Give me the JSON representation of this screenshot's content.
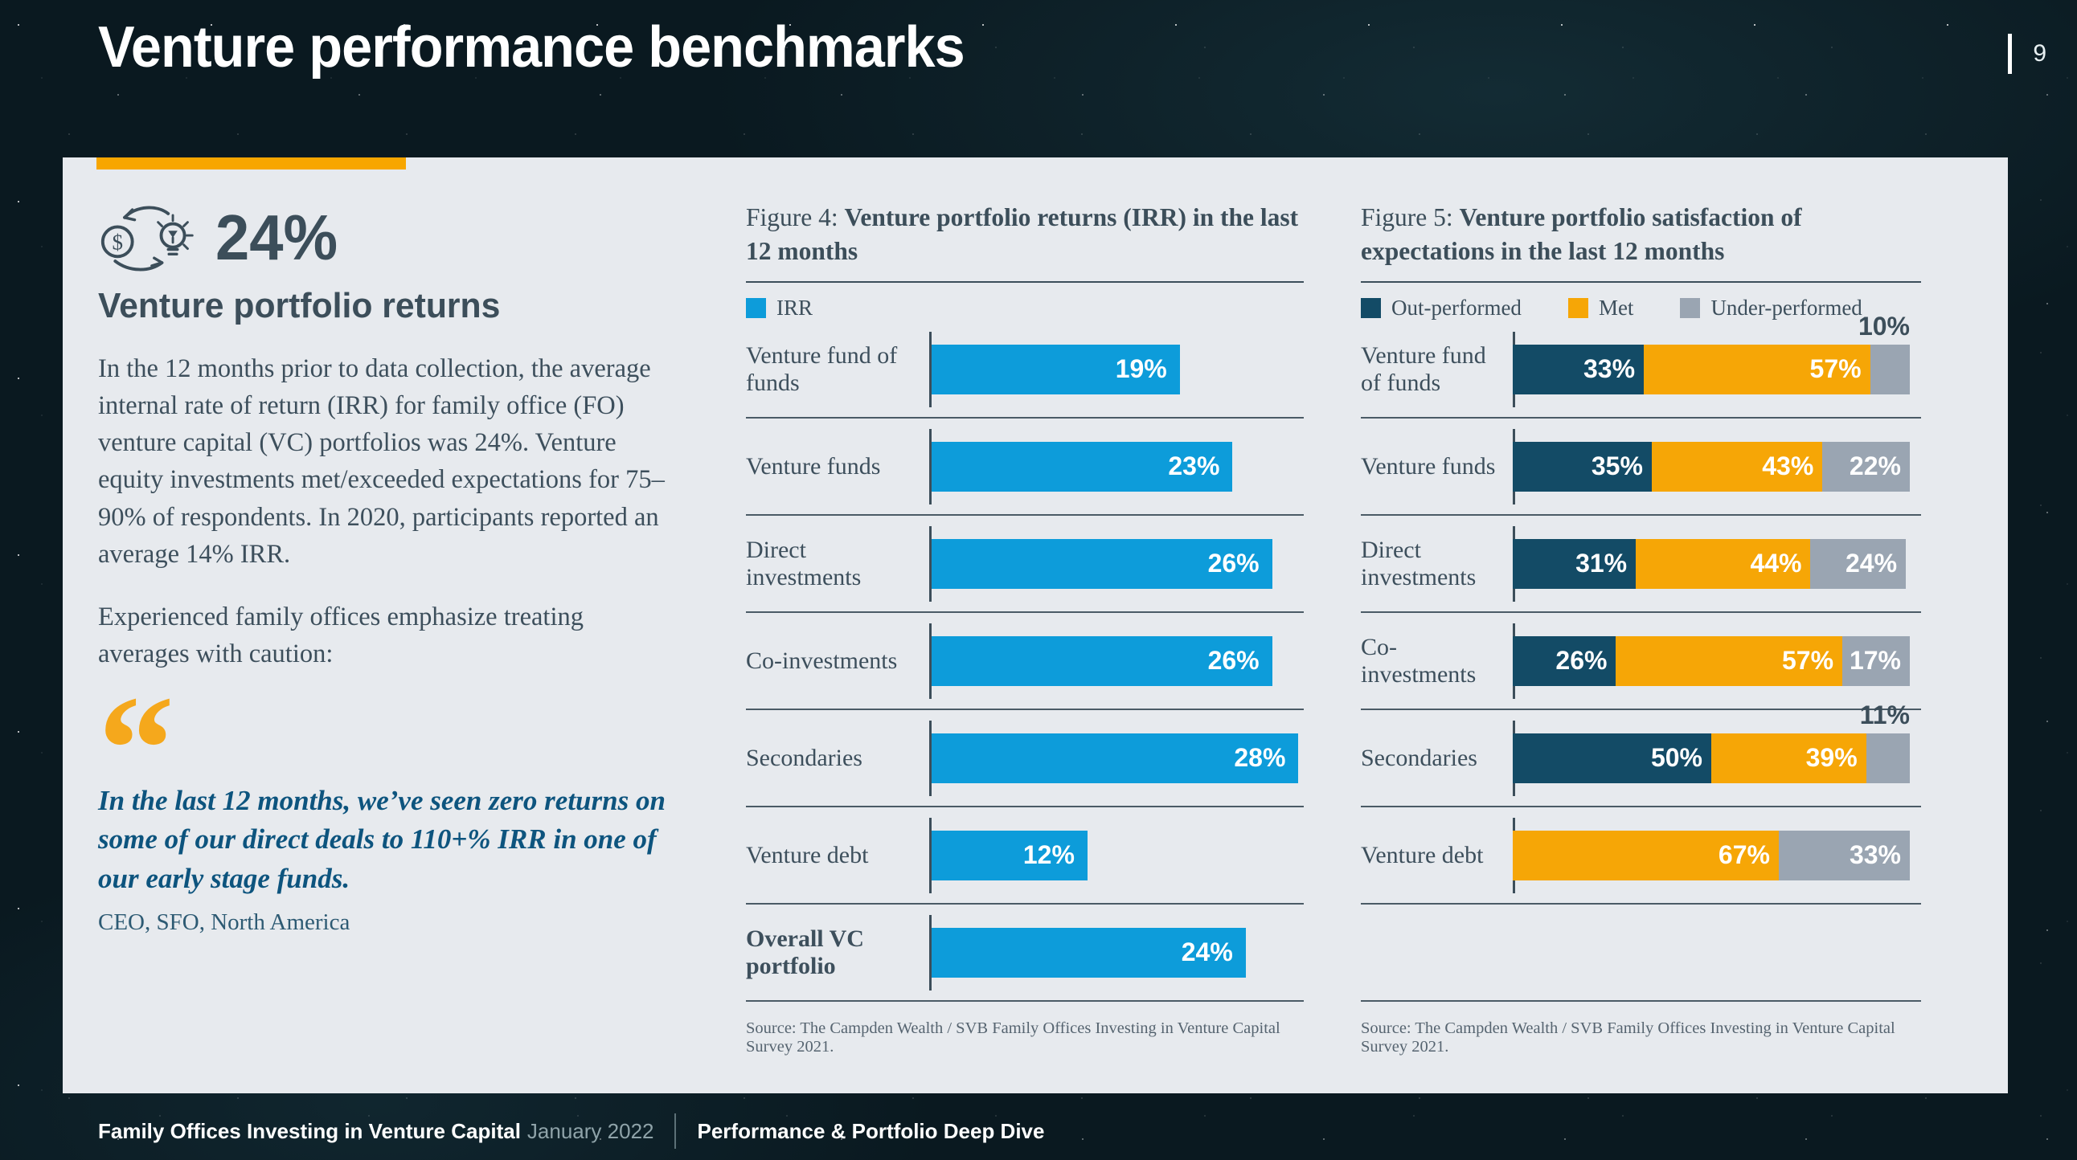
{
  "page": {
    "title": "Venture performance benchmarks",
    "page_number": "9"
  },
  "colors": {
    "accent_orange": "#f7a600",
    "irr_blue": "#0d9cda",
    "outperformed_navy": "#134b66",
    "met_orange": "#f6a606",
    "underperformed_gray": "#9aa5b2",
    "slate_text": "#3c4e5a",
    "quote_navy": "#0d547e",
    "panel_bg": "#e7eaee"
  },
  "left_panel": {
    "stat_value": "24%",
    "stat_heading": "Venture portfolio returns",
    "paragraph1": "In the 12 months prior to data collection, the average internal rate of return (IRR) for family office (FO) venture capital (VC) portfolios was 24%. Venture equity investments met/exceeded expectations for 75–90% of respondents. In 2020, participants reported an average 14% IRR.",
    "paragraph2": "Experienced family offices emphasize treating averages with caution:",
    "quote_mark": "“",
    "quote": "In the last 12 months, we’ve seen zero returns on some of our direct deals to 110+% IRR in one of our early stage funds.",
    "quote_attribution": "CEO, SFO, North America"
  },
  "chart_data": [
    {
      "type": "bar",
      "title_prefix": "Figure 4: ",
      "title": "Venture portfolio returns (IRR) in the last 12 months",
      "legend": [
        {
          "label": "IRR",
          "color": "#0d9cda"
        }
      ],
      "categories": [
        "Venture fund of funds",
        "Venture funds",
        "Direct investments",
        "Co-investments",
        "Secondaries",
        "Venture debt",
        "Overall VC portfolio"
      ],
      "bold_categories": [
        "Overall VC portfolio"
      ],
      "values": [
        19,
        23,
        26,
        26,
        28,
        12,
        24
      ],
      "value_suffix": "%",
      "xlim": [
        0,
        28.4
      ],
      "grid": false,
      "source": "Source: The Campden Wealth / SVB Family Offices Investing in Venture Capital Survey 2021."
    },
    {
      "type": "stacked-bar",
      "title_prefix": "Figure 5: ",
      "title": "Venture portfolio satisfaction of expectations in the last 12 months",
      "legend": [
        {
          "label": "Out-performed",
          "color": "#134b66"
        },
        {
          "label": "Met",
          "color": "#f6a606"
        },
        {
          "label": "Under-performed",
          "color": "#9aa5b2"
        }
      ],
      "categories": [
        "Venture fund of funds",
        "Venture funds",
        "Direct investments",
        "Co-investments",
        "Secondaries",
        "Venture debt"
      ],
      "series": [
        {
          "name": "Out-performed",
          "values": [
            33,
            35,
            31,
            26,
            50,
            0
          ]
        },
        {
          "name": "Met",
          "values": [
            57,
            43,
            44,
            57,
            39,
            67
          ]
        },
        {
          "name": "Under-performed",
          "values": [
            10,
            22,
            24,
            17,
            11,
            33
          ]
        }
      ],
      "value_suffix": "%",
      "xlim": [
        0,
        100
      ],
      "grid": false,
      "source": "Source: The Campden Wealth / SVB Family Offices Investing in Venture Capital Survey 2021."
    }
  ],
  "footer": {
    "doc_title": "Family Offices Investing in Venture Capital",
    "date": "January 2022",
    "section": "Performance & Portfolio Deep Dive"
  }
}
